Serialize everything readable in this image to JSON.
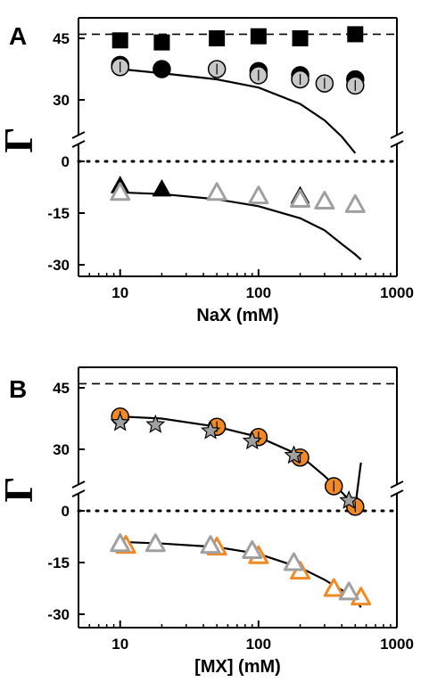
{
  "figure": {
    "colors": {
      "orange": "#f08a24",
      "gray": "#a0a0a0",
      "light_gray": "#c8c8c8",
      "black": "#000000"
    }
  },
  "chart_data": [
    {
      "panel_label": "A",
      "type": "scatter",
      "xscale": "log",
      "xlim": [
        5,
        1000
      ],
      "ylim": [
        -30,
        50
      ],
      "y_axis_break": true,
      "xlabel": "NaX (mM)",
      "ylabel": "Γ",
      "xticks": [
        10,
        100,
        1000
      ],
      "xtick_labels": [
        "10",
        "100",
        "1000"
      ],
      "yticks": [
        -30,
        -15,
        0,
        30,
        45
      ],
      "ytick_labels": [
        "-30",
        "-15",
        "0",
        "30",
        "45"
      ],
      "reference_lines": [
        {
          "y": 46,
          "style": "dashed"
        },
        {
          "y": 0,
          "style": "dotted"
        }
      ],
      "series": [
        {
          "marker": "square",
          "fill": "black",
          "points": [
            [
              10,
              44.5
            ],
            [
              20,
              44
            ],
            [
              50,
              45
            ],
            [
              100,
              45.5
            ],
            [
              200,
              45
            ],
            [
              500,
              46
            ]
          ]
        },
        {
          "marker": "circle",
          "fill": "black",
          "points": [
            [
              10,
              38.5
            ],
            [
              20,
              37.5
            ],
            [
              100,
              37
            ],
            [
              200,
              36
            ],
            [
              500,
              35
            ]
          ]
        },
        {
          "marker": "circle",
          "fill": "light_gray",
          "points": [
            [
              10,
              38
            ],
            [
              50,
              37.5
            ],
            [
              100,
              36
            ],
            [
              200,
              35
            ],
            [
              300,
              34
            ],
            [
              500,
              33.5
            ]
          ]
        },
        {
          "marker": "triangle",
          "fill": "black",
          "points": [
            [
              10,
              -7
            ],
            [
              20,
              -8
            ],
            [
              200,
              -10
            ]
          ]
        },
        {
          "marker": "triangle",
          "fill": "none",
          "stroke": "gray",
          "points": [
            [
              10,
              -9
            ],
            [
              50,
              -9
            ],
            [
              100,
              -10
            ],
            [
              200,
              -11
            ],
            [
              300,
              -11.5
            ],
            [
              500,
              -12.5
            ]
          ]
        }
      ],
      "fit_curves": [
        {
          "points": [
            [
              10,
              37.5
            ],
            [
              20,
              36.5
            ],
            [
              50,
              35
            ],
            [
              100,
              33
            ],
            [
              200,
              29
            ],
            [
              300,
              25
            ],
            [
              400,
              21
            ],
            [
              500,
              17
            ]
          ]
        },
        {
          "points": [
            [
              10,
              -9
            ],
            [
              20,
              -9.5
            ],
            [
              50,
              -11
            ],
            [
              100,
              -13
            ],
            [
              200,
              -16.5
            ],
            [
              300,
              -20
            ],
            [
              400,
              -24
            ],
            [
              500,
              -27
            ],
            [
              550,
              -28.5
            ]
          ]
        }
      ]
    },
    {
      "panel_label": "B",
      "type": "scatter",
      "xscale": "log",
      "xlim": [
        5,
        1000
      ],
      "ylim": [
        -30,
        50
      ],
      "y_axis_break": true,
      "xlabel": "[MX] (mM)",
      "ylabel": "Γ",
      "xticks": [
        10,
        100,
        1000
      ],
      "xtick_labels": [
        "10",
        "100",
        "1000"
      ],
      "yticks": [
        -30,
        -15,
        0,
        30,
        45
      ],
      "ytick_labels": [
        "-30",
        "-15",
        "0",
        "30",
        "45"
      ],
      "reference_lines": [
        {
          "y": 46,
          "style": "dashed"
        },
        {
          "y": 0,
          "style": "dotted"
        }
      ],
      "series": [
        {
          "marker": "circle",
          "fill": "orange",
          "points": [
            [
              10,
              38
            ],
            [
              50,
              35.5
            ],
            [
              100,
              33
            ],
            [
              200,
              28
            ],
            [
              350,
              21
            ],
            [
              500,
              16
            ]
          ]
        },
        {
          "marker": "star",
          "fill": "gray",
          "points": [
            [
              10,
              36.5
            ],
            [
              18,
              36
            ],
            [
              45,
              34.5
            ],
            [
              90,
              32
            ],
            [
              180,
              28.5
            ],
            [
              450,
              17.5
            ]
          ]
        },
        {
          "marker": "triangle",
          "fill": "none",
          "stroke": "orange",
          "points": [
            [
              11,
              -10
            ],
            [
              50,
              -10.5
            ],
            [
              100,
              -13
            ],
            [
              200,
              -17.5
            ],
            [
              350,
              -22.5
            ],
            [
              550,
              -25
            ]
          ]
        },
        {
          "marker": "triangle",
          "fill": "none",
          "stroke": "gray",
          "points": [
            [
              10,
              -9.5
            ],
            [
              18,
              -9.5
            ],
            [
              45,
              -10
            ],
            [
              90,
              -11.5
            ],
            [
              180,
              -15
            ],
            [
              450,
              -23.5
            ]
          ]
        }
      ],
      "fit_curves": [
        {
          "points": [
            [
              10,
              38
            ],
            [
              20,
              37.5
            ],
            [
              50,
              35.5
            ],
            [
              100,
              33
            ],
            [
              200,
              28.5
            ],
            [
              300,
              23.5
            ],
            [
              400,
              19.5
            ],
            [
              500,
              16
            ],
            [
              550,
              14
            ]
          ]
        },
        {
          "points": [
            [
              10,
              -9
            ],
            [
              20,
              -9.5
            ],
            [
              50,
              -10.5
            ],
            [
              100,
              -12.5
            ],
            [
              200,
              -16.5
            ],
            [
              300,
              -20
            ],
            [
              400,
              -23
            ],
            [
              500,
              -25.5
            ],
            [
              550,
              -28
            ]
          ]
        }
      ]
    }
  ]
}
